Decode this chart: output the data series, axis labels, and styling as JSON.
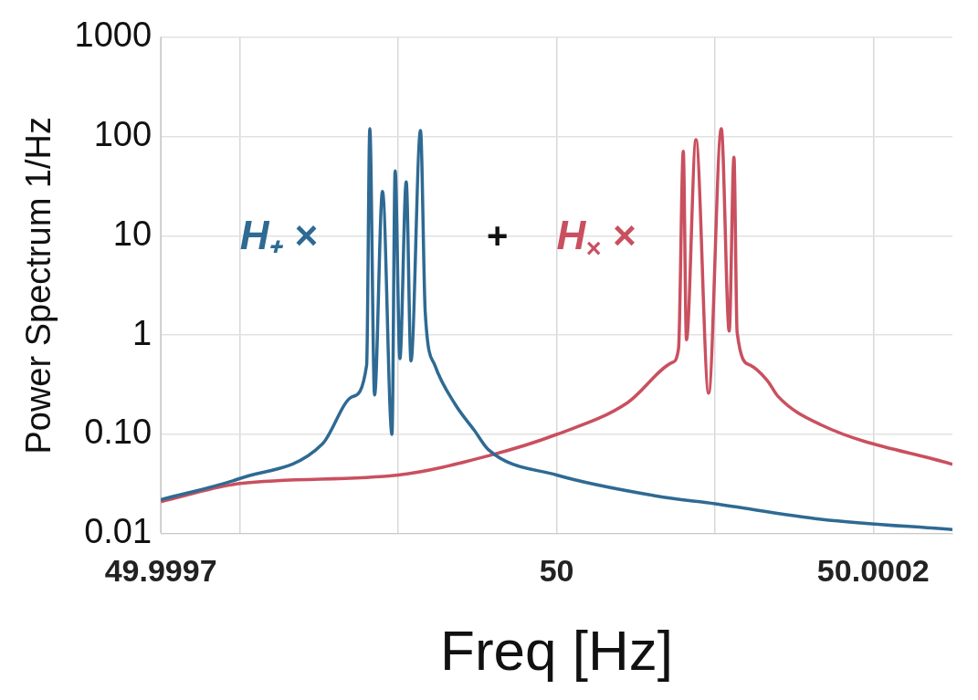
{
  "chart_data": {
    "type": "line",
    "xlabel": "Freq [Hz]",
    "ylabel": "Power Spectrum 1/Hz",
    "log": "y",
    "grid": true,
    "marker": "none",
    "line_style": "solid",
    "xlim": [
      49.99975,
      50.00025
    ],
    "xticks": [
      {
        "value": 49.99975,
        "label": "49.9997"
      },
      {
        "value": 49.9998,
        "label": null
      },
      {
        "value": 49.9999,
        "label": null
      },
      50,
      {
        "value": 50.0001,
        "label": null
      },
      50.0002
    ],
    "ylim": [
      0.01,
      1000
    ],
    "yticks": [
      0.01,
      {
        "value": 0.1,
        "label": "0.10"
      },
      1,
      10,
      100,
      1000
    ],
    "annotations": [
      "+"
    ],
    "series": [
      {
        "name": "H₊ ×",
        "color": "#2e6a93",
        "x": [
          49.99975,
          49.9998,
          49.999852,
          49.999871,
          49.99988,
          49.999882,
          49.999885,
          49.99989,
          49.999896,
          49.999898,
          49.999901,
          49.999905,
          49.999908,
          49.999914,
          49.999917,
          49.999923,
          49.999936,
          49.999948,
          49.999957,
          50,
          50.000063,
          50.0001,
          50.000167,
          50.00025
        ],
        "values": [
          0.022,
          0.036,
          0.08,
          0.24,
          0.5,
          120,
          0.25,
          28,
          0.1,
          45,
          0.58,
          35,
          0.55,
          115,
          1.7,
          0.5,
          0.2,
          0.11,
          0.07,
          0.039,
          0.024,
          0.02,
          0.014,
          0.011
        ]
      },
      {
        "name": "H$_{×}$ ×",
        "color": "#c9505f",
        "x": [
          49.99975,
          49.9998,
          49.9999,
          49.999957,
          50,
          50.000045,
          50.000073,
          50.000077,
          50.00008,
          50.000082,
          50.000088,
          50.000096,
          50.000104,
          50.000109,
          50.000112,
          50.000114,
          50.000122,
          50.000133,
          50.00014,
          50.000167,
          50.00025
        ],
        "values": [
          0.021,
          0.032,
          0.039,
          0.061,
          0.1,
          0.21,
          0.53,
          0.73,
          71,
          0.9,
          93,
          0.26,
          120,
          1.1,
          62,
          1.07,
          0.5,
          0.35,
          0.24,
          0.125,
          0.05
        ]
      }
    ]
  }
}
